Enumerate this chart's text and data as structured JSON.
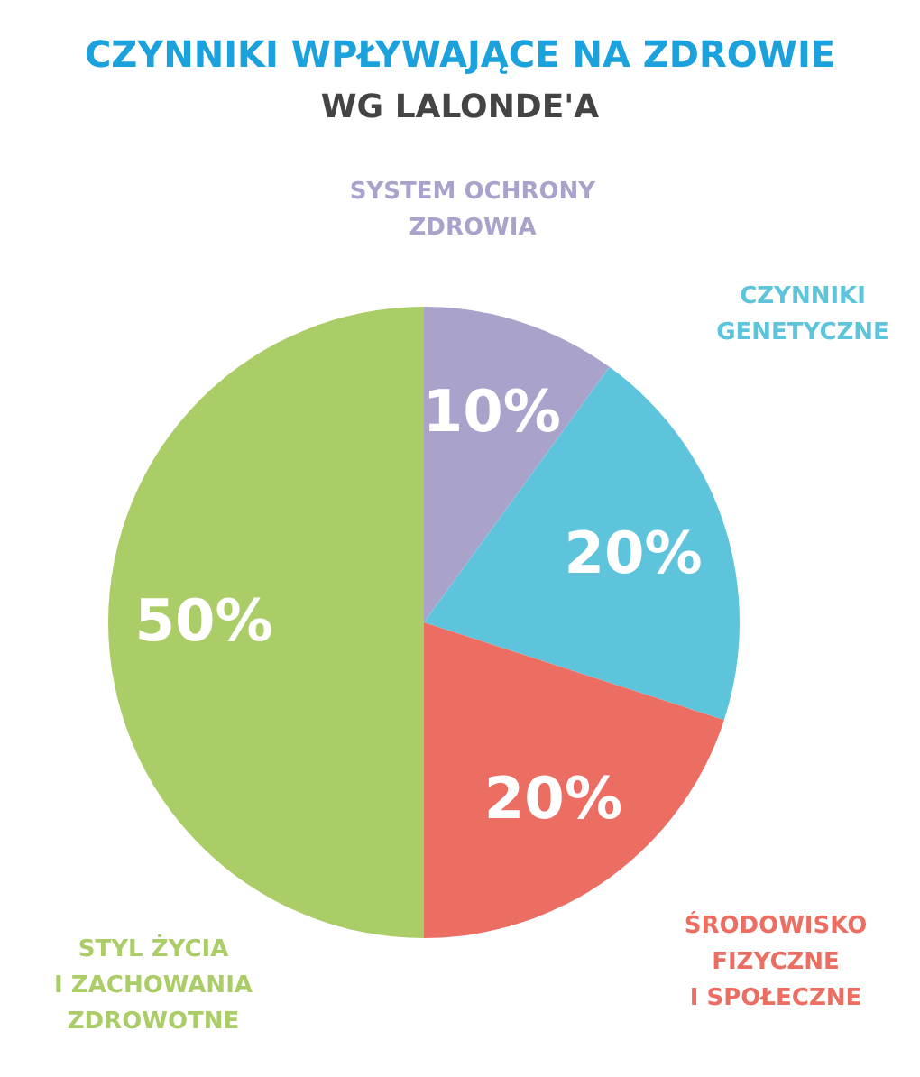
{
  "chart_data": {
    "type": "pie",
    "title": "CZYNNIKI WPŁYWAJĄCE NA ZDROWIE",
    "subtitle": "WG LALONDE'A",
    "categories": [
      "SYSTEM OCHRONY\nZDROWIA",
      "CZYNNIKI\nGENETYCZNE",
      "ŚRODOWISKO\nFIZYCZNE\nI SPOŁECZNE",
      "STYL ŻYCIA\nI ZACHOWANIA\nZDROWOTNE"
    ],
    "values": [
      10,
      20,
      20,
      50
    ],
    "colors": [
      "#a9a3cc",
      "#5ec4dc",
      "#ec6e63",
      "#abcd67"
    ],
    "value_labels": [
      "10%",
      "20%",
      "20%",
      "50%"
    ]
  }
}
